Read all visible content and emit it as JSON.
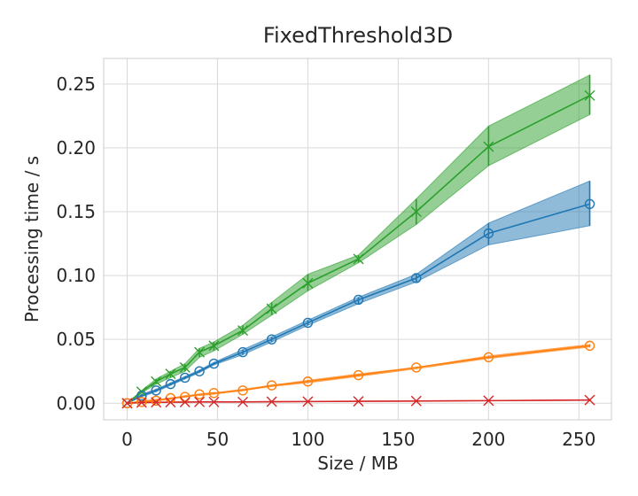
{
  "chart_data": {
    "type": "line",
    "title": "FixedThreshold3D",
    "xlabel": "Size / MB",
    "ylabel": "Processing time / s",
    "xlim": [
      -13,
      268
    ],
    "ylim": [
      -0.013,
      0.27
    ],
    "xticks": [
      0,
      50,
      100,
      150,
      200,
      250
    ],
    "yticks": [
      0.0,
      0.05,
      0.1,
      0.15,
      0.2,
      0.25
    ],
    "xtick_labels": [
      "0",
      "50",
      "100",
      "150",
      "200",
      "250"
    ],
    "ytick_labels": [
      "0.00",
      "0.05",
      "0.10",
      "0.15",
      "0.20",
      "0.25"
    ],
    "grid": true,
    "x": [
      0,
      8,
      16,
      24,
      32,
      40,
      48,
      64,
      80,
      100,
      128,
      160,
      200,
      256
    ],
    "series": [
      {
        "color": "#2ca02c",
        "marker": "x",
        "values": [
          0.0,
          0.009,
          0.017,
          0.023,
          0.028,
          0.04,
          0.045,
          0.057,
          0.074,
          0.094,
          0.113,
          0.15,
          0.201,
          0.241
        ],
        "band_low": [
          0.0,
          0.008,
          0.015,
          0.02,
          0.025,
          0.036,
          0.041,
          0.054,
          0.069,
          0.088,
          0.11,
          0.14,
          0.186,
          0.226
        ],
        "band_high": [
          0.0,
          0.01,
          0.019,
          0.025,
          0.031,
          0.043,
          0.048,
          0.061,
          0.079,
          0.101,
          0.116,
          0.16,
          0.217,
          0.257
        ]
      },
      {
        "color": "#1f77b4",
        "marker": "o",
        "values": [
          0.0,
          0.006,
          0.01,
          0.015,
          0.02,
          0.025,
          0.031,
          0.04,
          0.05,
          0.063,
          0.081,
          0.098,
          0.133,
          0.156
        ],
        "band_low": [
          0.0,
          0.005,
          0.009,
          0.014,
          0.019,
          0.024,
          0.03,
          0.038,
          0.048,
          0.061,
          0.078,
          0.095,
          0.124,
          0.139
        ],
        "band_high": [
          0.0,
          0.007,
          0.011,
          0.016,
          0.021,
          0.026,
          0.032,
          0.042,
          0.052,
          0.065,
          0.083,
          0.101,
          0.141,
          0.174
        ]
      },
      {
        "color": "#ff7f0e",
        "marker": "o",
        "values": [
          0.0,
          0.001,
          0.002,
          0.004,
          0.005,
          0.007,
          0.008,
          0.01,
          0.014,
          0.017,
          0.022,
          0.028,
          0.036,
          0.045
        ],
        "band_low": [
          0.0,
          0.001,
          0.002,
          0.003,
          0.005,
          0.006,
          0.007,
          0.01,
          0.013,
          0.016,
          0.021,
          0.027,
          0.035,
          0.044
        ],
        "band_high": [
          0.0,
          0.002,
          0.003,
          0.004,
          0.006,
          0.007,
          0.008,
          0.011,
          0.014,
          0.018,
          0.023,
          0.028,
          0.037,
          0.046
        ]
      },
      {
        "color": "#d62728",
        "marker": "x",
        "values": [
          0.0,
          0.0005,
          0.0007,
          0.0008,
          0.0009,
          0.001,
          0.001,
          0.001,
          0.0012,
          0.0013,
          0.0015,
          0.0017,
          0.002,
          0.0025
        ],
        "band_low": [
          0.0,
          0.0004,
          0.0006,
          0.0007,
          0.0008,
          0.0009,
          0.0009,
          0.0009,
          0.0011,
          0.0012,
          0.0014,
          0.0016,
          0.0019,
          0.0023
        ],
        "band_high": [
          0.0,
          0.0006,
          0.0008,
          0.0009,
          0.001,
          0.0011,
          0.0011,
          0.0011,
          0.0013,
          0.0014,
          0.0016,
          0.0018,
          0.0021,
          0.0027
        ]
      }
    ]
  }
}
